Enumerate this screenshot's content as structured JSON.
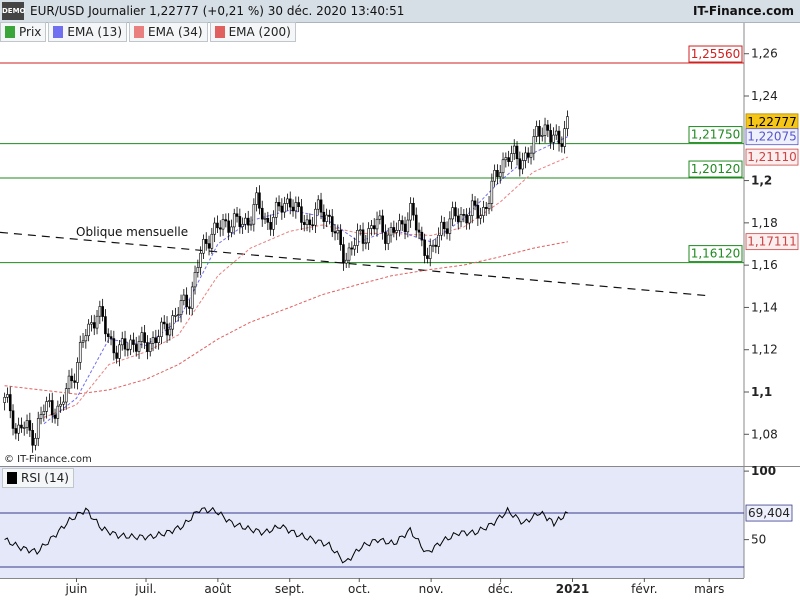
{
  "header": {
    "demo_label": "DEMO",
    "title": "EUR/USD Journalier 1,22777 (+0,21 %) 30 déc. 2020 13:40:51",
    "brand": "IT-Finance.com"
  },
  "legend": [
    {
      "label": "Prix",
      "color": "#3aa63a"
    },
    {
      "label": "EMA (13)",
      "color": "#6f6ff0"
    },
    {
      "label": "EMA (34)",
      "color": "#ea7f7f"
    },
    {
      "label": "EMA (200)",
      "color": "#e06060"
    }
  ],
  "copyright": "© IT-Finance.com",
  "rsi_legend": "RSI (14)",
  "chart_data": [
    {
      "type": "candlestick",
      "title": "EUR/USD Journalier",
      "ylim": [
        1.065,
        1.275
      ],
      "y_ticks": [
        {
          "value": 1.26,
          "label": "1,26"
        },
        {
          "value": 1.24,
          "label": "1,24"
        },
        {
          "value": 1.2,
          "label": "1,2"
        },
        {
          "value": 1.18,
          "label": "1,18"
        },
        {
          "value": 1.16,
          "label": "1,16"
        },
        {
          "value": 1.14,
          "label": "1,14"
        },
        {
          "value": 1.12,
          "label": "1,12"
        },
        {
          "value": 1.1,
          "label": "1,1"
        },
        {
          "value": 1.08,
          "label": "1,08"
        }
      ],
      "x_ticks": [
        "juin",
        "juil.",
        "août",
        "sept.",
        "oct.",
        "nov.",
        "déc.",
        "2021",
        "févr.",
        "mars"
      ],
      "close_path": [
        [
          "2020-05-01",
          1.095
        ],
        [
          "2020-05-04",
          1.092
        ],
        [
          "2020-05-06",
          1.08
        ],
        [
          "2020-05-08",
          1.084
        ],
        [
          "2020-05-12",
          1.081
        ],
        [
          "2020-05-14",
          1.08
        ],
        [
          "2020-05-18",
          1.092
        ],
        [
          "2020-05-21",
          1.094
        ],
        [
          "2020-05-25",
          1.09
        ],
        [
          "2020-05-28",
          1.103
        ],
        [
          "2020-06-01",
          1.112
        ],
        [
          "2020-06-05",
          1.128
        ],
        [
          "2020-06-10",
          1.138
        ],
        [
          "2020-06-15",
          1.126
        ],
        [
          "2020-06-19",
          1.118
        ],
        [
          "2020-06-24",
          1.124
        ],
        [
          "2020-06-29",
          1.122
        ],
        [
          "2020-07-03",
          1.124
        ],
        [
          "2020-07-08",
          1.128
        ],
        [
          "2020-07-14",
          1.137
        ],
        [
          "2020-07-20",
          1.145
        ],
        [
          "2020-07-24",
          1.163
        ],
        [
          "2020-07-29",
          1.176
        ],
        [
          "2020-08-03",
          1.178
        ],
        [
          "2020-08-07",
          1.182
        ],
        [
          "2020-08-12",
          1.178
        ],
        [
          "2020-08-18",
          1.19
        ],
        [
          "2020-08-21",
          1.18
        ],
        [
          "2020-08-26",
          1.184
        ],
        [
          "2020-09-01",
          1.192
        ],
        [
          "2020-09-04",
          1.184
        ],
        [
          "2020-09-09",
          1.18
        ],
        [
          "2020-09-14",
          1.186
        ],
        [
          "2020-09-18",
          1.183
        ],
        [
          "2020-09-22",
          1.17
        ],
        [
          "2020-09-25",
          1.164
        ],
        [
          "2020-09-30",
          1.172
        ],
        [
          "2020-10-05",
          1.176
        ],
        [
          "2020-10-09",
          1.18
        ],
        [
          "2020-10-14",
          1.174
        ],
        [
          "2020-10-19",
          1.178
        ],
        [
          "2020-10-23",
          1.186
        ],
        [
          "2020-10-28",
          1.17
        ],
        [
          "2020-11-02",
          1.165
        ],
        [
          "2020-11-05",
          1.178
        ],
        [
          "2020-11-09",
          1.181
        ],
        [
          "2020-11-13",
          1.183
        ],
        [
          "2020-11-18",
          1.185
        ],
        [
          "2020-11-23",
          1.185
        ],
        [
          "2020-11-26",
          1.192
        ],
        [
          "2020-12-01",
          1.208
        ],
        [
          "2020-12-04",
          1.212
        ],
        [
          "2020-12-08",
          1.21
        ],
        [
          "2020-12-11",
          1.211
        ],
        [
          "2020-12-15",
          1.214
        ],
        [
          "2020-12-17",
          1.226
        ],
        [
          "2020-12-21",
          1.224
        ],
        [
          "2020-12-23",
          1.218
        ],
        [
          "2020-12-28",
          1.222
        ],
        [
          "2020-12-30",
          1.2278
        ]
      ],
      "ema_200": [
        [
          "2020-05-01",
          1.103
        ],
        [
          "2020-06-01",
          1.099
        ],
        [
          "2020-06-15",
          1.101
        ],
        [
          "2020-07-01",
          1.106
        ],
        [
          "2020-07-15",
          1.113
        ],
        [
          "2020-08-01",
          1.125
        ],
        [
          "2020-08-15",
          1.133
        ],
        [
          "2020-09-01",
          1.14
        ],
        [
          "2020-09-15",
          1.146
        ],
        [
          "2020-10-01",
          1.151
        ],
        [
          "2020-10-15",
          1.155
        ],
        [
          "2020-11-01",
          1.158
        ],
        [
          "2020-11-15",
          1.16
        ],
        [
          "2020-12-01",
          1.164
        ],
        [
          "2020-12-15",
          1.168
        ],
        [
          "2020-12-30",
          1.1711
        ]
      ],
      "ema_34": [
        [
          "2020-05-18",
          1.088
        ],
        [
          "2020-06-01",
          1.094
        ],
        [
          "2020-06-15",
          1.113
        ],
        [
          "2020-07-01",
          1.119
        ],
        [
          "2020-07-15",
          1.127
        ],
        [
          "2020-08-01",
          1.155
        ],
        [
          "2020-08-15",
          1.168
        ],
        [
          "2020-09-01",
          1.176
        ],
        [
          "2020-09-15",
          1.179
        ],
        [
          "2020-10-01",
          1.175
        ],
        [
          "2020-10-15",
          1.175
        ],
        [
          "2020-11-01",
          1.174
        ],
        [
          "2020-11-15",
          1.178
        ],
        [
          "2020-12-01",
          1.19
        ],
        [
          "2020-12-15",
          1.204
        ],
        [
          "2020-12-30",
          1.2111
        ]
      ],
      "ema_13": [
        [
          "2020-05-18",
          1.085
        ],
        [
          "2020-06-01",
          1.097
        ],
        [
          "2020-06-15",
          1.125
        ],
        [
          "2020-07-01",
          1.122
        ],
        [
          "2020-07-15",
          1.134
        ],
        [
          "2020-08-01",
          1.17
        ],
        [
          "2020-08-15",
          1.181
        ],
        [
          "2020-09-01",
          1.186
        ],
        [
          "2020-09-15",
          1.183
        ],
        [
          "2020-10-01",
          1.171
        ],
        [
          "2020-10-15",
          1.177
        ],
        [
          "2020-11-01",
          1.171
        ],
        [
          "2020-11-15",
          1.182
        ],
        [
          "2020-12-01",
          1.2
        ],
        [
          "2020-12-15",
          1.213
        ],
        [
          "2020-12-30",
          1.2208
        ]
      ],
      "trendline": {
        "label": "Oblique mensuelle",
        "from": [
          "2020-04-29",
          1.1755
        ],
        "to": [
          "2021-03-01",
          1.1455
        ]
      },
      "levels": [
        {
          "value": 1.2556,
          "label": "1,25560",
          "color": "#d02020"
        },
        {
          "value": 1.2175,
          "label": "1,21750",
          "color": "#1f8a1f"
        },
        {
          "value": 1.2012,
          "label": "1,20120",
          "color": "#1f8a1f"
        },
        {
          "value": 1.1612,
          "label": "1,16120",
          "color": "#1f8a1f"
        }
      ],
      "value_badges": [
        {
          "value": 1.22777,
          "label": "1,22777",
          "bg": "#f5c518",
          "fg": "#000000"
        },
        {
          "value": 1.22075,
          "label": "1,22075",
          "bg": "#eef0fb",
          "fg": "#5555cc"
        },
        {
          "value": 1.2111,
          "label": "1,21110",
          "bg": "#fbeeee",
          "fg": "#cc4444"
        },
        {
          "value": 1.17111,
          "label": "1,17111",
          "bg": "#fbeeee",
          "fg": "#cc4444"
        }
      ]
    },
    {
      "type": "line",
      "title": "RSI (14)",
      "ylim": [
        22,
        103
      ],
      "y_ticks": [
        {
          "value": 100,
          "label": "100"
        },
        {
          "value": 50,
          "label": "50"
        }
      ],
      "upper_level": 69.404,
      "lower_level": 30,
      "current": {
        "value": 69.404,
        "label": "69,404"
      },
      "series": [
        [
          "2020-05-01",
          50
        ],
        [
          "2020-05-08",
          44
        ],
        [
          "2020-05-15",
          41
        ],
        [
          "2020-05-22",
          52
        ],
        [
          "2020-05-29",
          64
        ],
        [
          "2020-06-05",
          72
        ],
        [
          "2020-06-12",
          58
        ],
        [
          "2020-06-19",
          53
        ],
        [
          "2020-06-26",
          52
        ],
        [
          "2020-07-03",
          52
        ],
        [
          "2020-07-10",
          55
        ],
        [
          "2020-07-17",
          60
        ],
        [
          "2020-07-24",
          72
        ],
        [
          "2020-07-31",
          71
        ],
        [
          "2020-08-07",
          62
        ],
        [
          "2020-08-14",
          58
        ],
        [
          "2020-08-21",
          55
        ],
        [
          "2020-08-28",
          60
        ],
        [
          "2020-09-04",
          54
        ],
        [
          "2020-09-11",
          50
        ],
        [
          "2020-09-18",
          46
        ],
        [
          "2020-09-25",
          33
        ],
        [
          "2020-10-02",
          45
        ],
        [
          "2020-10-09",
          50
        ],
        [
          "2020-10-16",
          47
        ],
        [
          "2020-10-23",
          57
        ],
        [
          "2020-10-30",
          40
        ],
        [
          "2020-11-06",
          49
        ],
        [
          "2020-11-13",
          55
        ],
        [
          "2020-11-20",
          55
        ],
        [
          "2020-11-27",
          61
        ],
        [
          "2020-12-04",
          71
        ],
        [
          "2020-12-11",
          62
        ],
        [
          "2020-12-18",
          70
        ],
        [
          "2020-12-24",
          62
        ],
        [
          "2020-12-30",
          69.404
        ]
      ]
    }
  ]
}
